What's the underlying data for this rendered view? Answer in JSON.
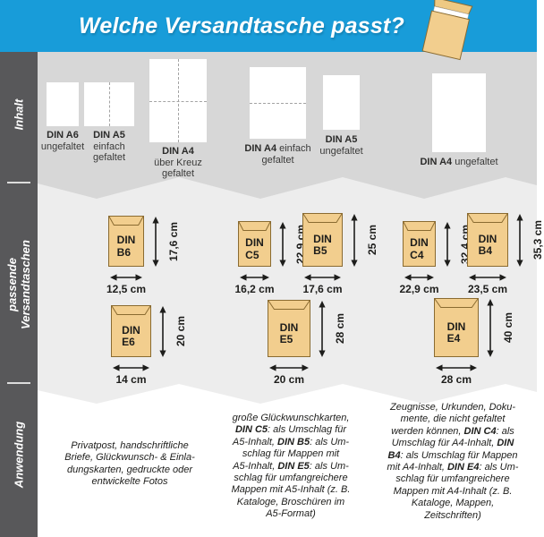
{
  "header": {
    "title": "Welche Versandtasche passt?",
    "envelope_icon": "envelope-icon"
  },
  "colors": {
    "header_bg": "#189CD9",
    "band_inhalt_bg": "#D7D7D7",
    "band_versandtaschen_bg": "#EDEDED",
    "band_anwendung_bg": "#FFFFFF",
    "sidebar_bg": "#58585A",
    "envelope_fill": "#F2CE8E",
    "envelope_border": "#8A6B31",
    "text": "#1D1D1B",
    "title_text": "#FFFFFF"
  },
  "sidebar": {
    "sections": [
      {
        "id": "inhalt",
        "lines": [
          "Inhalt"
        ]
      },
      {
        "id": "versandtaschen",
        "lines": [
          "passende",
          "Versandtaschen"
        ]
      },
      {
        "id": "anwendung",
        "lines": [
          "Anwendung"
        ]
      }
    ]
  },
  "inhalt": {
    "sheets": [
      {
        "id": "din-a6-ungefaltet",
        "fold": "none",
        "label_lines": [
          "**DIN A6**",
          "ungefaltet"
        ]
      },
      {
        "id": "din-a5-einfach-gefaltet",
        "fold": "vertical",
        "label_lines": [
          "**DIN A5**",
          "einfach",
          "gefaltet"
        ]
      },
      {
        "id": "din-a4-ueber-kreuz-gefaltet",
        "fold": "cross",
        "label_lines": [
          "**DIN A4**",
          "über Kreuz",
          "gefaltet"
        ]
      },
      {
        "id": "din-a4-einfach-gefaltet",
        "fold": "horizontal",
        "label_lines": [
          "**DIN A4** einfach",
          "gefaltet"
        ]
      },
      {
        "id": "din-a5-ungefaltet",
        "fold": "none",
        "label_lines": [
          "**DIN A5**",
          "ungefaltet"
        ]
      },
      {
        "id": "din-a4-ungefaltet",
        "fold": "none",
        "label_lines": [
          "**DIN A4** ungefaltet"
        ]
      }
    ]
  },
  "envelopes": [
    {
      "id": "din-b6",
      "name_lines": [
        "DIN",
        "B6"
      ],
      "width_label": "12,5 cm",
      "height_label": "17,6 cm"
    },
    {
      "id": "din-c5",
      "name_lines": [
        "DIN",
        "C5"
      ],
      "width_label": "16,2 cm",
      "height_label": "22,9 cm"
    },
    {
      "id": "din-b5",
      "name_lines": [
        "DIN",
        "B5"
      ],
      "width_label": "17,6 cm",
      "height_label": "25 cm"
    },
    {
      "id": "din-c4",
      "name_lines": [
        "DIN",
        "C4"
      ],
      "width_label": "22,9 cm",
      "height_label": "32,4 cm"
    },
    {
      "id": "din-b4",
      "name_lines": [
        "DIN",
        "B4"
      ],
      "width_label": "23,5 cm",
      "height_label": "35,3 cm"
    },
    {
      "id": "din-e6",
      "name_lines": [
        "DIN",
        "E6"
      ],
      "width_label": "14 cm",
      "height_label": "20 cm"
    },
    {
      "id": "din-e5",
      "name_lines": [
        "DIN",
        "E5"
      ],
      "width_label": "20 cm",
      "height_label": "28 cm"
    },
    {
      "id": "din-e4",
      "name_lines": [
        "DIN",
        "E4"
      ],
      "width_label": "28 cm",
      "height_label": "40 cm"
    }
  ],
  "anwendung": {
    "columns": [
      {
        "id": "anwendung-privatpost",
        "lines": [
          "Privatpost, handschriftliche",
          "Briefe, Glückwunsch- & Einla-",
          "dungskarten, gedruckte oder",
          "entwickelte Fotos"
        ]
      },
      {
        "id": "anwendung-a5-formate",
        "lines": [
          "große Glückwunschkarten,",
          "**DIN C5**: als Umschlag für",
          "A5-Inhalt, **DIN B5**: als Um-",
          "schlag für Mappen mit",
          "A5-Inhalt, **DIN E5**: als Um-",
          "schlag für umfangreichere",
          "Mappen mit A5-Inhalt (z. B.",
          "Kataloge, Broschüren im",
          "A5-Format)"
        ]
      },
      {
        "id": "anwendung-a4-formate",
        "lines": [
          "Zeugnisse, Urkunden, Doku-",
          "mente, die nicht gefaltet",
          "werden können, **DIN C4**: als",
          "Umschlag für A4-Inhalt, **DIN**",
          "**B4**: als Umschlag für Mappen",
          "mit A4-Inhalt, **DIN E4**: als Um-",
          "schlag für umfangreichere",
          "Mappen mit A4-Inhalt (z. B.",
          "Kataloge, Mappen,",
          "Zeitschriften)"
        ]
      }
    ]
  }
}
